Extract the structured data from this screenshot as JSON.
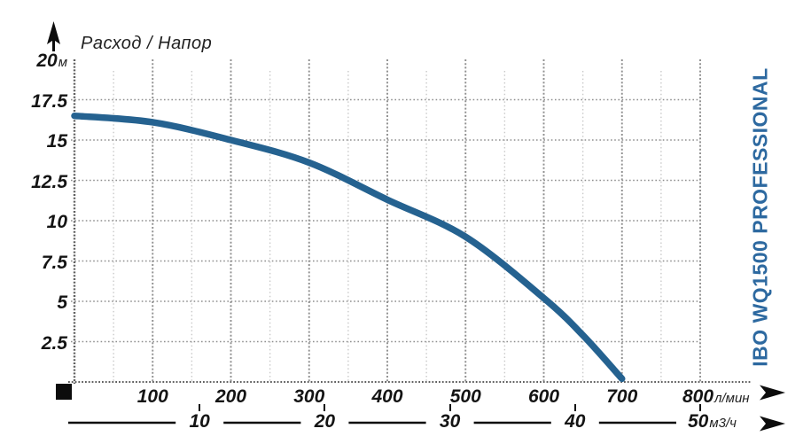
{
  "brand": "IBO WQ1500 PROFESSIONAL",
  "colors": {
    "curve": "#256290",
    "brand_text": "#2d69a0",
    "grid_major": "#8f8f8f",
    "grid_minor": "#c9c9c9",
    "axis_dotted": "#606060",
    "label_text": "#141414",
    "marker_black": "#0c0c0c"
  },
  "icons": {
    "up_arrow": "up-arrow-icon",
    "right_arrow_flow": "right-arrow-icon",
    "right_arrow_m3h": "right-arrow-icon",
    "origin_square": "square-marker"
  },
  "y_axis": {
    "labels": [
      {
        "value": 20,
        "label": "20",
        "unit": "м"
      },
      {
        "value": 17.5,
        "label": "17.5",
        "unit": ""
      },
      {
        "value": 15,
        "label": "15",
        "unit": ""
      },
      {
        "value": 12.5,
        "label": "12.5",
        "unit": ""
      },
      {
        "value": 10,
        "label": "10",
        "unit": ""
      },
      {
        "value": 7.5,
        "label": "7.5",
        "unit": ""
      },
      {
        "value": 5,
        "label": "5",
        "unit": ""
      },
      {
        "value": 2.5,
        "label": "2.5",
        "unit": ""
      }
    ]
  },
  "x_axis_primary": {
    "unit": "л/мин",
    "labels": [
      {
        "value": 100,
        "label": "100",
        "unit": ""
      },
      {
        "value": 200,
        "label": "200",
        "unit": ""
      },
      {
        "value": 300,
        "label": "300",
        "unit": ""
      },
      {
        "value": 400,
        "label": "400",
        "unit": ""
      },
      {
        "value": 500,
        "label": "500",
        "unit": ""
      },
      {
        "value": 600,
        "label": "600",
        "unit": ""
      },
      {
        "value": 700,
        "label": "700",
        "unit": ""
      },
      {
        "value": 800,
        "label": "800",
        "unit": "л/мин"
      }
    ]
  },
  "x_axis_secondary": {
    "unit": "м3/ч",
    "labels": [
      {
        "value": 10,
        "label": "10",
        "unit": ""
      },
      {
        "value": 20,
        "label": "20",
        "unit": ""
      },
      {
        "value": 30,
        "label": "30",
        "unit": ""
      },
      {
        "value": 40,
        "label": "40",
        "unit": ""
      },
      {
        "value": 50,
        "label": "50",
        "unit": "м3/ч"
      }
    ]
  },
  "chart_data": {
    "type": "line",
    "title": "Расход / Напор",
    "series": [
      {
        "name": "IBO WQ1500 PROFESSIONAL head curve",
        "x": [
          0,
          100,
          200,
          300,
          400,
          500,
          600,
          650,
          700
        ],
        "y": [
          16.5,
          16.1,
          15.0,
          13.6,
          11.3,
          9.0,
          5.2,
          2.9,
          0.2
        ]
      }
    ],
    "xlabel": "л/мин",
    "x2label": "м3/ч",
    "ylabel": "м",
    "xlim": [
      0,
      800
    ],
    "ylim": [
      0,
      20
    ],
    "x_tick_step_major": 100,
    "x_tick_step_minor": 50,
    "y_tick_step": 2.5,
    "grid": "dotted",
    "legend": "none"
  }
}
